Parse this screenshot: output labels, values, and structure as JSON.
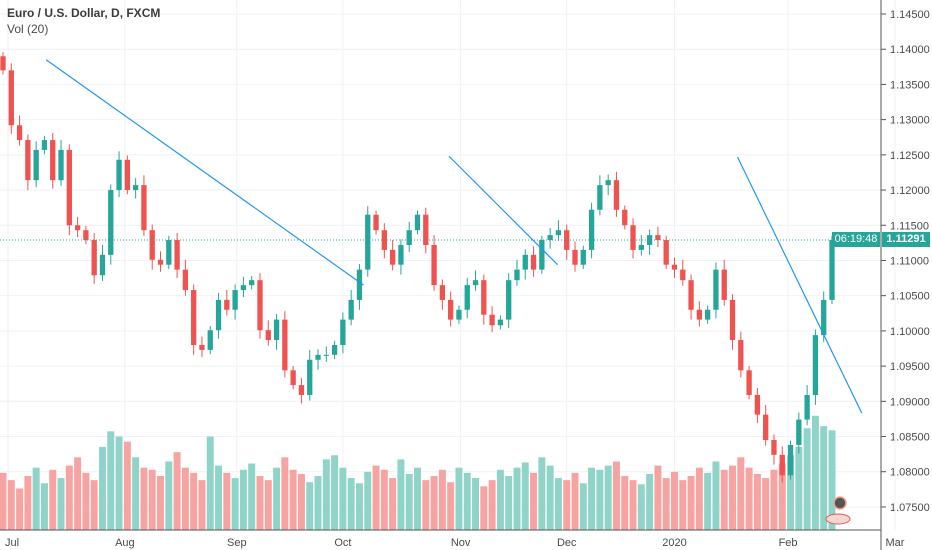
{
  "legend": {
    "title": "Euro / U.S. Dollar, D, FXCM",
    "indicator": "Vol (20)"
  },
  "price_tag": {
    "price": "1.11291",
    "countdown": "06:19:48"
  },
  "colors": {
    "up": "#26a69a",
    "down": "#ef5350",
    "up_vol": "#8fd3c9",
    "down_vol": "#f6a3a1",
    "trendline": "#2196f3",
    "grid": "#eef2f6"
  },
  "chart_data": {
    "type": "candlestick",
    "title": "Euro / U.S. Dollar, D, FXCM",
    "ylim": [
      1.0725,
      1.1475
    ],
    "yticks": [
      "1.14500",
      "1.14000",
      "1.13500",
      "1.13000",
      "1.12500",
      "1.12000",
      "1.11500",
      "1.11000",
      "1.10500",
      "1.10000",
      "1.09500",
      "1.09000",
      "1.08500",
      "1.08000",
      "1.07500"
    ],
    "ytick_values": [
      1.145,
      1.14,
      1.135,
      1.13,
      1.125,
      1.12,
      1.115,
      1.11,
      1.105,
      1.1,
      1.095,
      1.09,
      1.085,
      1.08,
      1.075
    ],
    "xticks": [
      {
        "label": "Jul",
        "bar": 0.6
      },
      {
        "label": "Aug",
        "bar": 14.7
      },
      {
        "label": "Sep",
        "bar": 28.2
      },
      {
        "label": "Oct",
        "bar": 41.0
      },
      {
        "label": "Nov",
        "bar": 55.2
      },
      {
        "label": "Dec",
        "bar": 68.0
      },
      {
        "label": "2020",
        "bar": 81.0
      },
      {
        "label": "Feb",
        "bar": 94.7
      },
      {
        "label": "Mar",
        "bar": 107.6
      }
    ],
    "closes": [
      1.137,
      1.1292,
      1.1271,
      1.1214,
      1.1257,
      1.1271,
      1.1214,
      1.1257,
      1.115,
      1.1143,
      1.1129,
      1.1079,
      1.1108,
      1.12,
      1.1243,
      1.12,
      1.1207,
      1.1143,
      1.1101,
      1.1094,
      1.1129,
      1.1087,
      1.1058,
      1.098,
      1.0973,
      1.1001,
      1.1044,
      1.103,
      1.1058,
      1.1065,
      1.1072,
      1.1001,
      1.0987,
      1.1016,
      1.0944,
      1.0923,
      1.0909,
      1.0959,
      1.0966,
      1.0966,
      1.098,
      1.1016,
      1.1044,
      1.1087,
      1.1165,
      1.1143,
      1.1115,
      1.1094,
      1.1122,
      1.1143,
      1.1165,
      1.1122,
      1.1065,
      1.1044,
      1.1016,
      1.103,
      1.1065,
      1.1072,
      1.1023,
      1.1008,
      1.1016,
      1.1072,
      1.1087,
      1.1108,
      1.1087,
      1.1129,
      1.1136,
      1.1143,
      1.1115,
      1.1094,
      1.1115,
      1.1172,
      1.1207,
      1.1214,
      1.1172,
      1.115,
      1.1115,
      1.1122,
      1.1136,
      1.1129,
      1.1094,
      1.1087,
      1.1072,
      1.103,
      1.1016,
      1.103,
      1.1087,
      1.1044,
      1.0987,
      1.0944,
      1.0909,
      1.0881,
      1.0845,
      1.0824,
      1.0795,
      1.0838,
      1.0874,
      1.0909,
      1.0994,
      1.1044,
      1.11291
    ],
    "first_open": 1.139,
    "volumes": [
      55,
      48,
      40,
      52,
      60,
      45,
      58,
      50,
      62,
      70,
      55,
      48,
      80,
      95,
      90,
      85,
      70,
      60,
      58,
      52,
      66,
      75,
      60,
      55,
      48,
      90,
      62,
      55,
      50,
      58,
      64,
      52,
      48,
      60,
      70,
      58,
      54,
      46,
      52,
      68,
      72,
      60,
      50,
      45,
      56,
      62,
      58,
      50,
      68,
      54,
      60,
      48,
      52,
      58,
      46,
      60,
      55,
      50,
      42,
      48,
      58,
      52,
      60,
      65,
      55,
      70,
      62,
      50,
      48,
      55,
      45,
      60,
      58,
      62,
      66,
      52,
      48,
      44,
      54,
      62,
      50,
      56,
      48,
      52,
      60,
      55,
      66,
      58,
      62,
      70,
      60,
      54,
      50,
      58,
      64,
      72,
      80,
      98,
      110,
      100,
      96
    ],
    "trendlines": [
      {
        "from": {
          "bar": 5.2,
          "price": 1.1385
        },
        "to": {
          "bar": 43.5,
          "price": 1.1065
        }
      },
      {
        "from": {
          "bar": 53.8,
          "price": 1.1248
        },
        "to": {
          "bar": 66.9,
          "price": 1.1094
        }
      },
      {
        "from": {
          "bar": 88.6,
          "price": 1.1247
        },
        "to": {
          "bar": 103.6,
          "price": 1.0883
        }
      }
    ],
    "last_price": 1.11291
  }
}
